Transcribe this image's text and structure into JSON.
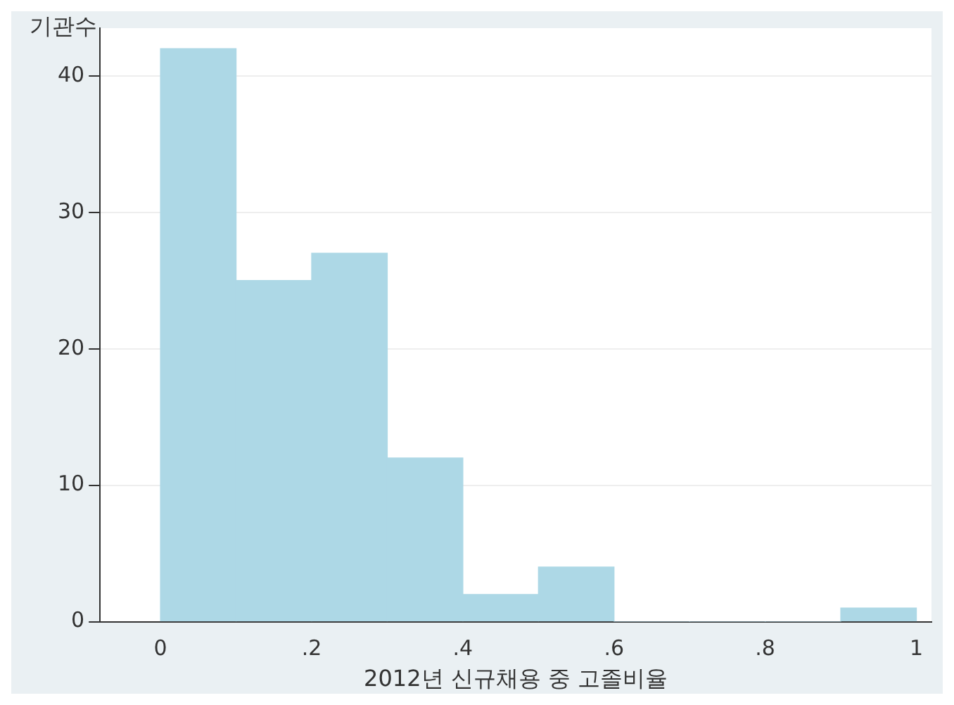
{
  "chart_data": {
    "type": "histogram",
    "xlabel": "2012년 신규채용 중 고졸비율",
    "ylabel": "기관수",
    "bins": [
      0,
      0.1,
      0.2,
      0.3,
      0.4,
      0.5,
      0.6,
      0.7,
      0.8,
      0.9,
      1
    ],
    "values": [
      42,
      25,
      27,
      12,
      2,
      4,
      0,
      0,
      0,
      1
    ],
    "color": "#add8e6",
    "xlim": [
      -0.08,
      1.02
    ],
    "xticks": [
      0,
      {
        "value": 0.2,
        "label": ".2"
      },
      {
        "value": 0.4,
        "label": ".4"
      },
      {
        "value": 0.6,
        "label": ".6"
      },
      {
        "value": 0.8,
        "label": ".8"
      },
      1
    ],
    "ylim": [
      0,
      43.5
    ],
    "yticks": [
      0,
      10,
      20,
      30,
      40
    ],
    "grid": "y",
    "legend": false
  }
}
